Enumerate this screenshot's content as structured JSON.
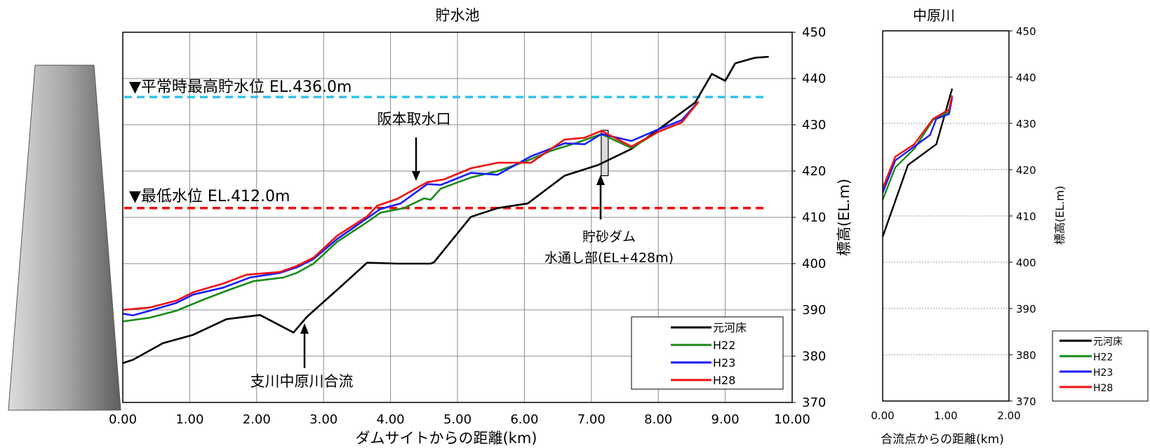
{
  "chart_data": [
    {
      "type": "line",
      "title": "貯水池",
      "xlabel": "ダムサイトからの距離(km)",
      "ylabel": "標高(EL.m)",
      "xlim": [
        0,
        10
      ],
      "ylim": [
        370,
        450
      ],
      "x_ticks": [
        "0.00",
        "1.00",
        "2.00",
        "3.00",
        "4.00",
        "5.00",
        "6.00",
        "7.00",
        "8.00",
        "9.00",
        "10.00"
      ],
      "y_ticks": [
        "370",
        "380",
        "390",
        "400",
        "410",
        "420",
        "430",
        "440",
        "450"
      ],
      "grid": true,
      "legend_position": "bottom-right",
      "series": [
        {
          "name": "元河床",
          "color": "#000000",
          "x": [
            0.0,
            0.15,
            0.6,
            1.05,
            1.55,
            2.05,
            2.55,
            2.75,
            3.2,
            3.65,
            4.1,
            4.6,
            4.65,
            5.2,
            5.6,
            6.05,
            6.6,
            7.1,
            7.6,
            8.05,
            8.55,
            8.8,
            9.0,
            9.15,
            9.45,
            9.65
          ],
          "y": [
            378.5,
            379.2,
            382.8,
            384.6,
            388.0,
            388.9,
            385.1,
            388.5,
            394.3,
            400.2,
            400.0,
            400.0,
            400.3,
            410.1,
            412.0,
            413.0,
            419.0,
            421.3,
            424.8,
            429.5,
            434.8,
            441.0,
            439.5,
            443.3,
            444.5,
            444.7
          ]
        },
        {
          "name": "H22",
          "color": "#1a8a1a",
          "x": [
            0.0,
            0.4,
            0.8,
            1.2,
            1.6,
            1.95,
            2.4,
            2.6,
            2.85,
            3.2,
            3.6,
            3.85,
            4.2,
            4.5,
            4.6,
            4.75,
            5.2,
            5.6,
            6.0,
            6.4,
            6.8,
            7.15,
            7.6,
            8.0,
            8.35,
            8.6
          ],
          "y": [
            387.5,
            388.3,
            389.8,
            392.2,
            394.4,
            396.2,
            397.0,
            398.0,
            400.0,
            404.7,
            408.5,
            411.0,
            412.0,
            414.1,
            413.8,
            416.2,
            418.6,
            420.0,
            422.0,
            424.4,
            426.2,
            428.0,
            425.0,
            428.5,
            430.5,
            435.0
          ]
        },
        {
          "name": "H23",
          "color": "#1a1aff",
          "x": [
            0.0,
            0.15,
            0.4,
            0.8,
            1.05,
            1.5,
            1.9,
            2.35,
            2.6,
            2.85,
            3.2,
            3.6,
            3.85,
            4.15,
            4.55,
            4.75,
            5.2,
            5.6,
            6.1,
            6.6,
            6.9,
            7.15,
            7.6,
            8.0,
            8.35,
            8.6
          ],
          "y": [
            389.2,
            388.8,
            389.8,
            391.5,
            393.3,
            394.8,
            397.0,
            398.0,
            399.2,
            401.0,
            405.3,
            409.3,
            411.8,
            413.0,
            417.2,
            417.0,
            419.6,
            419.2,
            423.2,
            426.0,
            425.8,
            428.0,
            426.5,
            429.0,
            431.0,
            435.0
          ]
        },
        {
          "name": "H28",
          "color": "#ee1111",
          "x": [
            0.0,
            0.4,
            0.8,
            1.05,
            1.5,
            1.85,
            2.35,
            2.6,
            2.85,
            3.2,
            3.65,
            3.8,
            4.1,
            4.55,
            4.8,
            5.2,
            5.6,
            6.1,
            6.6,
            6.9,
            7.15,
            7.6,
            8.0,
            8.35,
            8.6
          ],
          "y": [
            390.0,
            390.5,
            392.0,
            393.8,
            395.7,
            397.6,
            398.2,
            399.5,
            401.3,
            406.0,
            410.2,
            412.5,
            414.0,
            417.6,
            418.2,
            420.6,
            421.8,
            421.8,
            426.8,
            427.2,
            428.7,
            425.3,
            428.5,
            430.5,
            435.0
          ]
        }
      ],
      "reference_lines": [
        {
          "label": "▼平常時最高貯水位 EL.436.0m",
          "y": 436.0,
          "color": "#33c2e8"
        },
        {
          "label": "▼最低水位 EL.412.0m",
          "y": 412.0,
          "color": "#ee1111"
        }
      ],
      "annotations": [
        {
          "text": "阪本取水口",
          "x": 4.45
        },
        {
          "text": "支川中原川合流",
          "x": 2.75
        },
        {
          "text": "貯砂ダム",
          "x": 7.2
        },
        {
          "text": "水通し部(EL+428m)",
          "x": 7.2
        }
      ],
      "structure": {
        "x": 7.2,
        "y_bottom": 419.0,
        "y_top": 428.8
      }
    },
    {
      "type": "line",
      "title": "中原川",
      "xlabel": "合流点からの距離(km)",
      "ylabel": "標高(EL.m)",
      "xlim": [
        0,
        2
      ],
      "ylim": [
        370,
        450
      ],
      "x_ticks": [
        "0.00",
        "1.00",
        "2.00"
      ],
      "y_ticks": [
        "370",
        "380",
        "390",
        "400",
        "410",
        "420",
        "430",
        "440",
        "450"
      ],
      "grid": true,
      "legend_position": "bottom-right outside",
      "series": [
        {
          "name": "元河床",
          "color": "#000000",
          "x": [
            0.0,
            0.4,
            0.85,
            1.1
          ],
          "y": [
            405.5,
            421.0,
            425.5,
            437.5
          ]
        },
        {
          "name": "H22",
          "color": "#1a8a1a",
          "x": [
            0.0,
            0.2,
            0.5,
            0.8,
            1.05,
            1.1
          ],
          "y": [
            413.5,
            420.5,
            424.5,
            430.8,
            432.5,
            436.0
          ]
        },
        {
          "name": "H23",
          "color": "#1a1aff",
          "x": [
            0.0,
            0.2,
            0.5,
            0.75,
            0.85,
            1.05,
            1.1
          ],
          "y": [
            415.0,
            422.0,
            425.0,
            427.5,
            431.0,
            432.0,
            435.5
          ]
        },
        {
          "name": "H28",
          "color": "#ee1111",
          "x": [
            0.0,
            0.2,
            0.5,
            0.8,
            1.05,
            1.1
          ],
          "y": [
            416.0,
            422.8,
            425.5,
            431.0,
            433.0,
            436.0
          ]
        }
      ]
    }
  ]
}
